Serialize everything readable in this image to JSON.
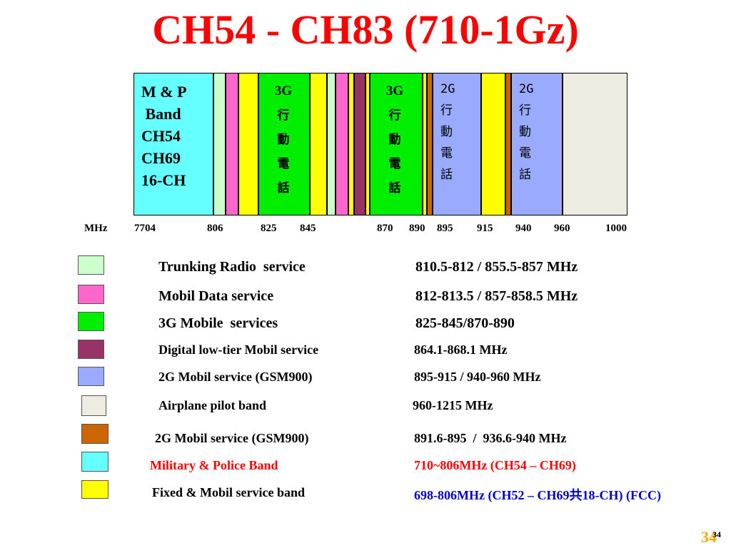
{
  "title": "CH54 - CH83 (710-1Gz)",
  "spectrum": {
    "mp_band": {
      "lines": [
        "M & P",
        " Band",
        "CH54",
        "CH69",
        "16-CH"
      ],
      "color": "#66ffff"
    },
    "g3_left": {
      "lines": [
        "3G",
        "行",
        "動",
        "電",
        "話"
      ],
      "color": "#00ee00"
    },
    "g3_right": {
      "lines": [
        "3G",
        "行",
        "動",
        "電",
        "話"
      ],
      "color": "#00ee00"
    },
    "g2_left": {
      "lines": [
        "2G",
        "行",
        "動",
        "電",
        "話"
      ],
      "color": "#99aaff"
    },
    "g2_right": {
      "lines": [
        "2G",
        "行",
        "動",
        "電",
        "話"
      ],
      "color": "#99aaff"
    },
    "freq_labels": [
      "MHz",
      "7704",
      "806",
      "825",
      "845",
      "870",
      "890",
      "895",
      "915",
      "940",
      "960",
      "1000"
    ]
  },
  "legend": [
    {
      "color": "#ccffcc",
      "service": "Trunking Radio  service",
      "range": "810.5-812 / 855.5-857 MHz"
    },
    {
      "color": "#ff66cc",
      "service": "Mobil Data service",
      "range": "812-813.5 / 857-858.5 MHz"
    },
    {
      "color": "#00ee00",
      "service": "3G Mobile  services",
      "range": "825-845/870-890"
    },
    {
      "color": "#993366",
      "service": "Digital low-tier Mobil service",
      "range": "864.1-868.1 MHz"
    },
    {
      "color": "#99aaff",
      "service": "2G Mobil service (GSM900)",
      "range": "895-915 / 940-960 MHz"
    },
    {
      "color": "#eeece1",
      "service": "Airplane pilot band",
      "range": "960-1215 MHz"
    },
    {
      "color": "#cc6600",
      "service": "2G Mobil service (GSM900)",
      "range": "891.6-895  /  936.6-940 MHz"
    },
    {
      "color": "#66ffff",
      "service": "Military & Police Band",
      "range": "710~806MHz (CH54 – CH69)",
      "service_color": "#ff0000",
      "range_color": "#ff0000"
    },
    {
      "color": "#ffff00",
      "service": "Fixed & Mobil service band",
      "range": "698-806MHz (CH52 – CH69共18-CH) (FCC)",
      "range_color": "#0000cc"
    }
  ],
  "page_number": "34",
  "page_number_small": "34"
}
